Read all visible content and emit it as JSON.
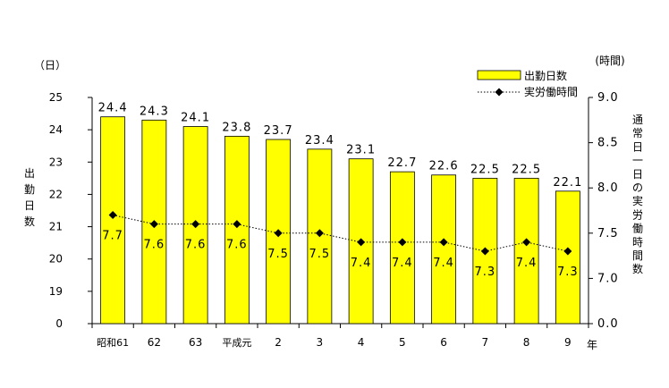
{
  "chart_data": {
    "type": "bar",
    "categories": [
      "昭和61",
      "62",
      "63",
      "平成元",
      "2",
      "3",
      "4",
      "5",
      "6",
      "7",
      "8",
      "9"
    ],
    "x_unit": "年",
    "series": [
      {
        "name": "出勤日数",
        "kind": "bar",
        "axis": "left",
        "color": "#ffff00",
        "values": [
          24.4,
          24.3,
          24.1,
          23.8,
          23.7,
          23.4,
          23.1,
          22.7,
          22.6,
          22.5,
          22.5,
          22.1
        ],
        "labels": [
          "24.4",
          "24.3",
          "24.1",
          "23.8",
          "23.7",
          "23.4",
          "23.1",
          "22.7",
          "22.6",
          "22.5",
          "22.5",
          "22.1"
        ]
      },
      {
        "name": "実労働時間",
        "kind": "line",
        "line_style": "dotted",
        "marker": "diamond",
        "axis": "right",
        "color": "#000000",
        "values": [
          7.7,
          7.6,
          7.6,
          7.6,
          7.5,
          7.5,
          7.4,
          7.4,
          7.4,
          7.3,
          7.4,
          7.3
        ],
        "labels": [
          "7.7",
          "7.6",
          "7.6",
          "7.6",
          "7.5",
          "7.5",
          "7.4",
          "7.4",
          "7.4",
          "7.3",
          "7.4",
          "7.3"
        ]
      }
    ],
    "y_left": {
      "unit": "（日）",
      "label": "出勤日数",
      "ylim": [
        0,
        25
      ],
      "broken_axis": true,
      "ticks": [
        "0",
        "19",
        "20",
        "21",
        "22",
        "23",
        "24",
        "25"
      ]
    },
    "y_right": {
      "unit": "(時間)",
      "label": "通常日一日の実労働時間数",
      "ylim": [
        0,
        9
      ],
      "broken_axis": true,
      "ticks": [
        "0.0",
        "7.0",
        "7.5",
        "8.0",
        "8.5",
        "9.0"
      ]
    },
    "legend_position": "top-right",
    "grid": false
  }
}
